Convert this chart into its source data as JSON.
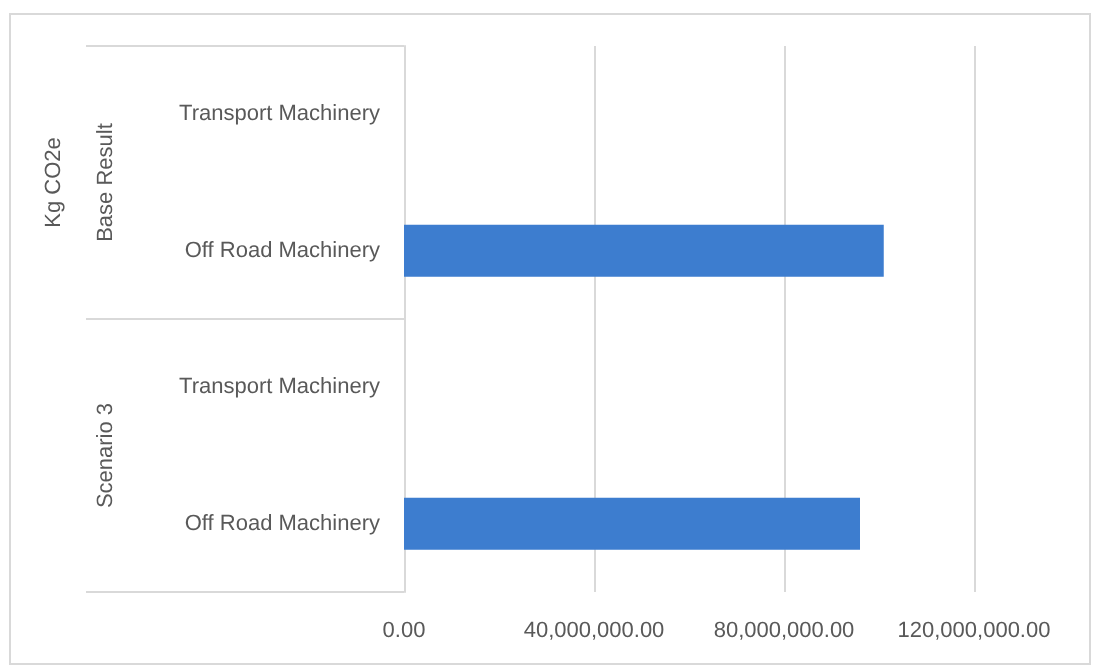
{
  "chart_data": {
    "type": "bar",
    "orientation": "horizontal",
    "categories": [
      "Transport Machinery",
      "Off Road Machinery",
      "Transport Machinery",
      "Off Road Machinery"
    ],
    "values": [
      0,
      101000000,
      0,
      96000000
    ],
    "color": "#3d7dcf",
    "xlim": [
      0,
      120000000
    ],
    "xticks": [
      {
        "value": 0,
        "label": "0.00"
      },
      {
        "value": 40000000,
        "label": "40,000,000.00"
      },
      {
        "value": 80000000,
        "label": "80,000,000.00"
      },
      {
        "value": 120000000,
        "label": "120,000,000.00"
      }
    ],
    "grid": "x",
    "annotations": [
      "Kg CO2e",
      "Base Result",
      "Scenario 3"
    ]
  }
}
